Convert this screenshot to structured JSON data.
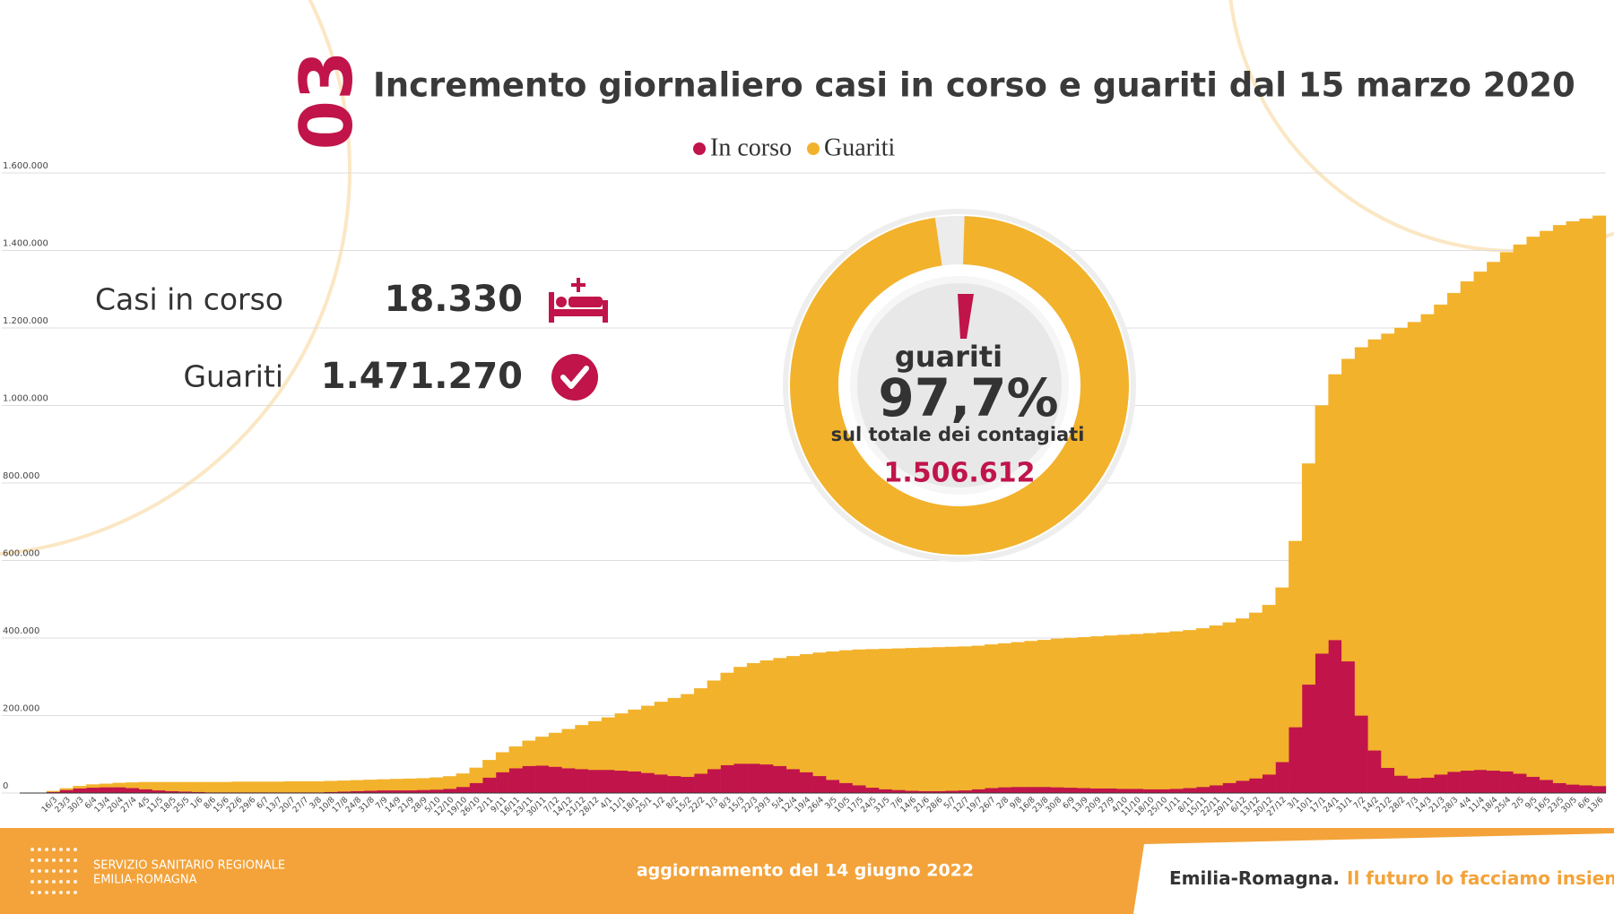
{
  "chart_data": {
    "type": "stacked-bar",
    "badge": "03",
    "title": "Incremento giornaliero casi in corso e guariti dal 15 marzo 2020",
    "categories": [
      "16/3",
      "23/3",
      "30/3",
      "6/4",
      "13/4",
      "20/4",
      "27/4",
      "4/5",
      "11/5",
      "18/5",
      "25/5",
      "1/6",
      "8/6",
      "15/6",
      "22/6",
      "29/6",
      "6/7",
      "13/7",
      "20/7",
      "27/7",
      "3/8",
      "10/8",
      "17/8",
      "24/8",
      "31/8",
      "7/9",
      "14/9",
      "21/9",
      "28/9",
      "5/10",
      "12/10",
      "19/10",
      "26/10",
      "2/11",
      "9/11",
      "16/11",
      "23/11",
      "30/11",
      "7/12",
      "14/12",
      "21/12",
      "28/12",
      "4/1",
      "11/1",
      "18/1",
      "25/1",
      "1/2",
      "8/2",
      "15/2",
      "22/2",
      "1/3",
      "8/3",
      "15/3",
      "22/3",
      "29/3",
      "5/4",
      "12/4",
      "19/4",
      "26/4",
      "3/5",
      "10/5",
      "17/5",
      "24/5",
      "31/5",
      "7/6",
      "14/6",
      "21/6",
      "28/6",
      "5/7",
      "12/7",
      "19/7",
      "26/7",
      "2/8",
      "9/8",
      "16/8",
      "23/8",
      "30/8",
      "6/9",
      "13/9",
      "20/9",
      "27/9",
      "4/10",
      "11/10",
      "18/10",
      "25/10",
      "1/11",
      "8/11",
      "15/11",
      "22/11",
      "29/11",
      "6/12",
      "13/12",
      "20/12",
      "27/12",
      "3/1",
      "10/1",
      "17/1",
      "24/1",
      "31/1",
      "7/2",
      "14/2",
      "21/2",
      "28/2",
      "7/3",
      "14/3",
      "21/3",
      "28/3",
      "4/4",
      "11/4",
      "18/4",
      "25/4",
      "2/5",
      "9/5",
      "16/5",
      "23/5",
      "30/5",
      "6/6",
      "13/6"
    ],
    "series": [
      {
        "name": "In corso",
        "color": "#c0144a",
        "values": [
          3000,
          8000,
          12000,
          14000,
          15000,
          15000,
          13000,
          10000,
          7000,
          5000,
          4000,
          3000,
          2000,
          2000,
          2000,
          2000,
          2000,
          2000,
          2000,
          2000,
          2000,
          3000,
          4000,
          5000,
          6000,
          7000,
          7000,
          7000,
          8000,
          9000,
          11000,
          16000,
          26000,
          40000,
          54000,
          64000,
          70000,
          71000,
          68000,
          64000,
          62000,
          60000,
          60000,
          58000,
          56000,
          52000,
          48000,
          44000,
          42000,
          50000,
          62000,
          72000,
          76000,
          76000,
          74000,
          70000,
          62000,
          54000,
          44000,
          34000,
          26000,
          20000,
          14000,
          10000,
          8000,
          6000,
          5000,
          5000,
          6000,
          7000,
          10000,
          13000,
          15000,
          16000,
          16000,
          16000,
          15000,
          14000,
          13000,
          12000,
          12000,
          11000,
          11000,
          10000,
          10000,
          11000,
          13000,
          16000,
          20000,
          26000,
          32000,
          38000,
          48000,
          80000,
          170000,
          280000,
          360000,
          395000,
          340000,
          200000,
          110000,
          65000,
          45000,
          38000,
          40000,
          48000,
          55000,
          58000,
          60000,
          58000,
          56000,
          50000,
          42000,
          34000,
          26000,
          22000,
          20000,
          18330
        ]
      },
      {
        "name": "Guariti",
        "color": "#f2b22b",
        "values": [
          2000,
          4000,
          6000,
          8000,
          9000,
          11000,
          14000,
          18000,
          21000,
          23000,
          24000,
          25000,
          26000,
          26000,
          27000,
          27000,
          27000,
          27000,
          28000,
          28000,
          28000,
          28000,
          28000,
          28000,
          28000,
          28000,
          29000,
          30000,
          30000,
          31000,
          32000,
          34000,
          39000,
          45000,
          51000,
          56000,
          65000,
          74000,
          87000,
          101000,
          113000,
          125000,
          135000,
          147000,
          159000,
          173000,
          187000,
          201000,
          213000,
          220000,
          228000,
          238000,
          249000,
          259000,
          268000,
          278000,
          291000,
          304000,
          318000,
          331000,
          342000,
          350000,
          357000,
          362000,
          365000,
          368000,
          370000,
          371000,
          371000,
          371000,
          370000,
          370000,
          371000,
          373000,
          376000,
          379000,
          383000,
          386000,
          389000,
          392000,
          394000,
          397000,
          399000,
          402000,
          404000,
          406000,
          407000,
          409000,
          412000,
          414000,
          418000,
          427000,
          437000,
          450000,
          480000,
          570000,
          640000,
          685000,
          780000,
          950000,
          1060000,
          1120000,
          1155000,
          1177000,
          1195000,
          1212000,
          1235000,
          1262000,
          1285000,
          1312000,
          1339000,
          1365000,
          1393000,
          1416000,
          1439000,
          1453000,
          1462000,
          1471270
        ]
      }
    ],
    "ylim": [
      0,
      1600000
    ],
    "yticks": [
      0,
      {
        "value": 200000,
        "label": "200.000"
      },
      {
        "value": 400000,
        "label": "400.000"
      },
      {
        "value": 600000,
        "label": "600.000"
      },
      {
        "value": 800000,
        "label": "800.000"
      },
      {
        "value": 1000000,
        "label": "1.000.000"
      },
      {
        "value": 1200000,
        "label": "1.200.000"
      },
      {
        "value": 1400000,
        "label": "1.400.000"
      },
      {
        "value": 1600000,
        "label": "1.600.000"
      }
    ],
    "grid": true
  },
  "kpis": [
    {
      "label": "Casi in corso",
      "value": "18.330"
    },
    {
      "label": "Guariti",
      "value": "1.471.270"
    }
  ],
  "summary": {
    "label": "guariti",
    "value": 97.7,
    "value_label": "97,7%",
    "caption": "sul totale dei contagiati",
    "total": "1.506.612"
  },
  "footer": {
    "org_line1": "SERVIZIO SANITARIO REGIONALE",
    "org_line2": "EMILIA-ROMAGNA",
    "update": "aggiornamento del 14 giugno 2022",
    "brand": "Emilia-Romagna.",
    "slogan": "Il futuro lo facciamo insieme."
  }
}
